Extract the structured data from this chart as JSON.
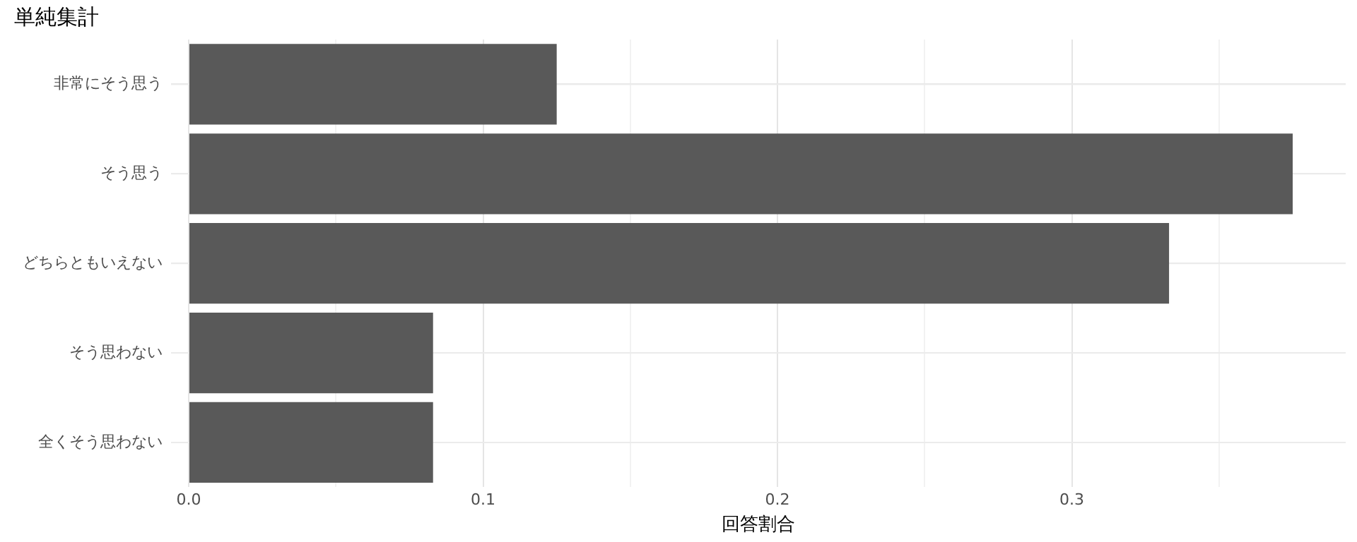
{
  "chart_data": {
    "type": "bar",
    "orientation": "horizontal",
    "title": "単純集計",
    "xlabel": "回答割合",
    "categories": [
      "非常にそう思う",
      "そう思う",
      "どちらともいえない",
      "そう思わない",
      "全くそう思わない"
    ],
    "values": [
      0.125,
      0.375,
      0.333,
      0.083,
      0.083
    ],
    "color": "#595959",
    "xlim": [
      -0.006,
      0.393
    ],
    "xticks": [
      {
        "value": 0,
        "label": "0.0"
      },
      {
        "value": 0.05,
        "label": null
      },
      {
        "value": 0.1,
        "label": "0.1"
      },
      {
        "value": 0.15,
        "label": null
      },
      {
        "value": 0.2,
        "label": "0.2"
      },
      {
        "value": 0.25,
        "label": null
      },
      {
        "value": 0.3,
        "label": "0.3"
      },
      {
        "value": 0.35,
        "label": null
      }
    ],
    "grid": true
  }
}
